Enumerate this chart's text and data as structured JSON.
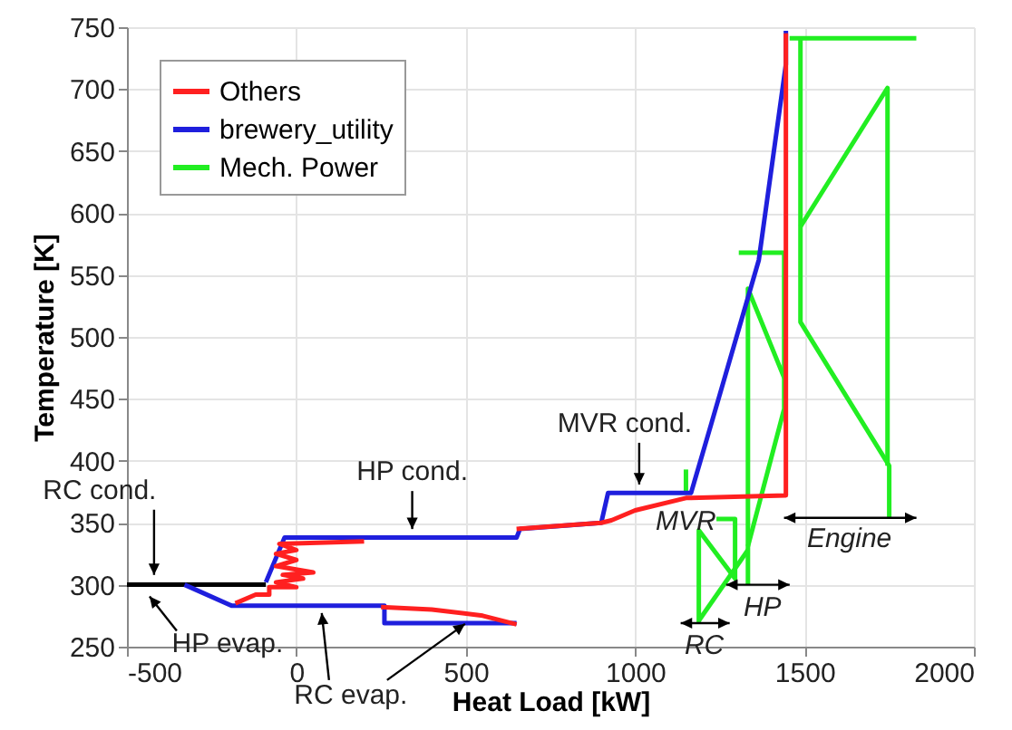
{
  "chart_data": {
    "type": "line",
    "xlabel": "Heat Load [kW]",
    "ylabel": "Temperature [K]",
    "xlim": [
      -500,
      2000
    ],
    "xticks": [
      -500,
      0,
      500,
      1000,
      1500,
      2000
    ],
    "ylim": [
      250,
      750
    ],
    "yticks": [
      250,
      300,
      350,
      400,
      450,
      500,
      550,
      600,
      650,
      700,
      750
    ],
    "grid": true,
    "legend": "top left",
    "line_style": "solid",
    "marker": "none",
    "series": [
      {
        "name": "Others",
        "color": "#ff2020",
        "x": [
          -180,
          -120,
          -80,
          -80,
          0,
          -60,
          20,
          -40,
          50,
          -60,
          0,
          -60,
          0,
          -50,
          200,
          null,
          250,
          400,
          550,
          650,
          null,
          650,
          900,
          930,
          1000,
          1150,
          1445,
          1445
        ],
        "values": [
          285,
          292,
          292,
          298,
          298,
          302,
          305,
          308,
          310,
          315,
          320,
          325,
          328,
          333,
          335,
          null,
          282,
          280,
          275,
          268,
          null,
          345,
          350,
          352,
          360,
          370,
          372,
          745
        ]
      },
      {
        "name": "brewery_utility",
        "color": "#1f1fdd",
        "x": [
          -330,
          -190,
          260,
          260,
          650,
          null,
          -90,
          -35,
          650,
          660,
          900,
          920,
          1165,
          1226,
          1365,
          1445,
          1445
        ],
        "values": [
          300,
          283,
          283,
          269,
          269,
          null,
          302,
          338,
          338,
          345,
          350,
          374,
          374,
          431,
          562,
          720,
          747
        ]
      },
      {
        "name": "Mech. Power",
        "color": "#22ee22",
        "x": [
          1150,
          1150,
          null,
          1306,
          1440,
          1440,
          1333,
          null,
          1333,
          1333,
          1440,
          null,
          1188,
          1188,
          1295,
          1295,
          1240,
          null,
          1188,
          1333,
          null,
          1456,
          1830,
          null,
          1488,
          1488,
          1750,
          1750,
          null,
          1488,
          1745,
          1745
        ],
        "values": [
          375,
          393,
          null,
          568,
          568,
          442,
          331,
          null,
          300,
          539,
          467,
          null,
          269,
          344,
          305,
          353,
          353,
          null,
          271,
          328,
          null,
          741,
          741,
          null,
          741,
          512,
          396,
          354,
          null,
          589,
          701,
          396
        ]
      },
      {
        "color": "#000000",
        "x": [
          -500,
          -90
        ],
        "values": [
          300,
          300
        ]
      }
    ],
    "annotations": [
      {
        "text": "RC cond.",
        "x": -420,
        "y": 305
      },
      {
        "text": "HP evap.",
        "x": -444,
        "y": 295
      },
      {
        "text": "HP cond.",
        "x": 342,
        "y": 342
      },
      {
        "text": "RC evap.",
        "x": 75,
        "y": 283
      },
      {
        "text": "MVR cond.",
        "x": 1012,
        "y": 378
      },
      {
        "text": "MVR",
        "x": 1150,
        "y": 375
      },
      {
        "text": "HP",
        "x": 1333,
        "y": 300
      },
      {
        "text": "RC",
        "x": 1188,
        "y": 269
      },
      {
        "text": "Engine",
        "x": 1750,
        "y": 354
      }
    ]
  }
}
